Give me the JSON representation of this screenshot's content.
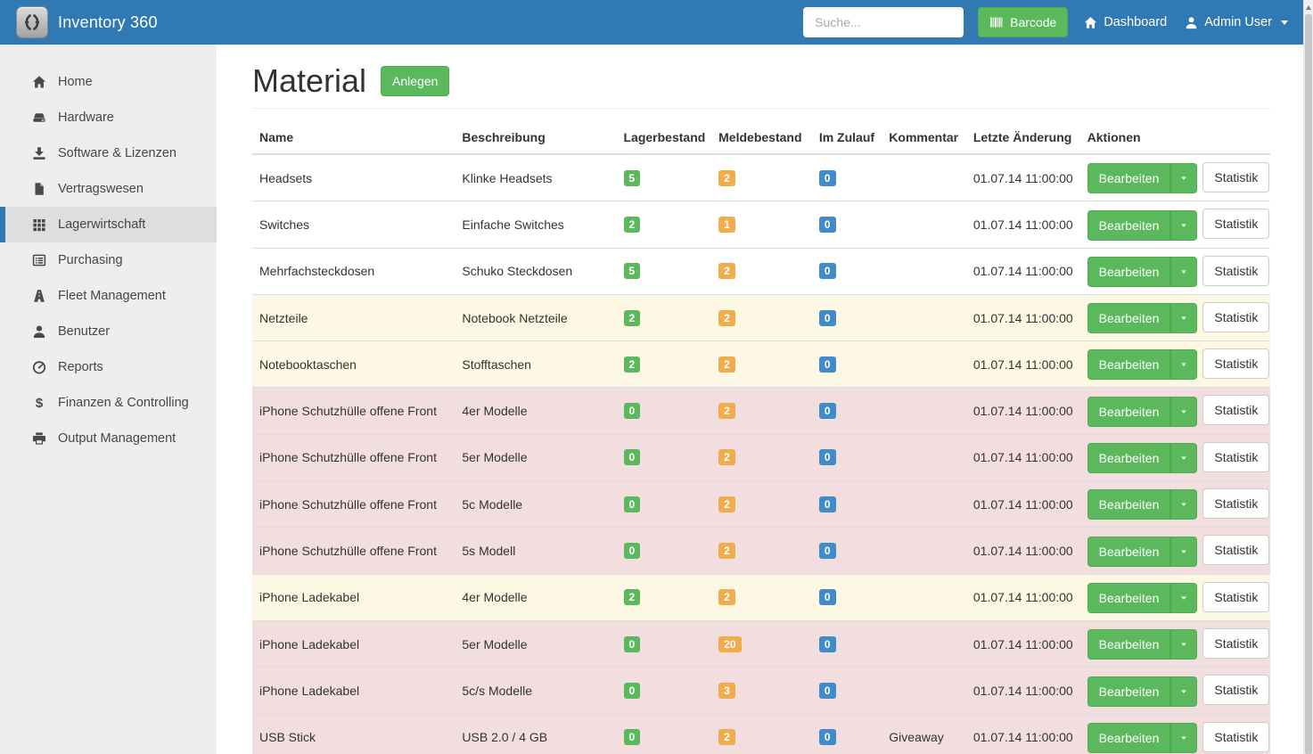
{
  "navbar": {
    "brand": "Inventory 360",
    "search_placeholder": "Suche...",
    "barcode_label": "Barcode",
    "dashboard_label": "Dashboard",
    "user_label": "Admin User"
  },
  "sidebar": {
    "items": [
      {
        "label": "Home",
        "icon": "home-icon",
        "active": false
      },
      {
        "label": "Hardware",
        "icon": "hdd-icon",
        "active": false
      },
      {
        "label": "Software & Lizenzen",
        "icon": "download-icon",
        "active": false
      },
      {
        "label": "Vertragswesen",
        "icon": "file-icon",
        "active": false
      },
      {
        "label": "Lagerwirtschaft",
        "icon": "grid-icon",
        "active": true
      },
      {
        "label": "Purchasing",
        "icon": "list-icon",
        "active": false
      },
      {
        "label": "Fleet Management",
        "icon": "road-icon",
        "active": false
      },
      {
        "label": "Benutzer",
        "icon": "user-icon",
        "active": false
      },
      {
        "label": "Reports",
        "icon": "gauge-icon",
        "active": false
      },
      {
        "label": "Finanzen & Controlling",
        "icon": "dollar-icon",
        "active": false
      },
      {
        "label": "Output Management",
        "icon": "printer-icon",
        "active": false
      }
    ]
  },
  "page": {
    "title": "Material",
    "create_button_label": "Anlegen"
  },
  "table": {
    "columns": [
      "Name",
      "Beschreibung",
      "Lagerbestand",
      "Meldebestand",
      "Im Zulauf",
      "Kommentar",
      "Letzte Änderung",
      "Aktionen"
    ],
    "actions": {
      "edit_label": "Bearbeiten",
      "stats_label": "Statistik"
    },
    "rows": [
      {
        "name": "Headsets",
        "description": "Klinke Headsets",
        "stock": "5",
        "reorder": "2",
        "inbound": "0",
        "comment": "",
        "changed": "01.07.14 11:00:00",
        "state": "default"
      },
      {
        "name": "Switches",
        "description": "Einfache Switches",
        "stock": "2",
        "reorder": "1",
        "inbound": "0",
        "comment": "",
        "changed": "01.07.14 11:00:00",
        "state": "default"
      },
      {
        "name": "Mehrfachsteckdosen",
        "description": "Schuko Steckdosen",
        "stock": "5",
        "reorder": "2",
        "inbound": "0",
        "comment": "",
        "changed": "01.07.14 11:00:00",
        "state": "default"
      },
      {
        "name": "Netzteile",
        "description": "Notebook Netzteile",
        "stock": "2",
        "reorder": "2",
        "inbound": "0",
        "comment": "",
        "changed": "01.07.14 11:00:00",
        "state": "warning"
      },
      {
        "name": "Notebooktaschen",
        "description": "Stofftaschen",
        "stock": "2",
        "reorder": "2",
        "inbound": "0",
        "comment": "",
        "changed": "01.07.14 11:00:00",
        "state": "warning"
      },
      {
        "name": "iPhone Schutzhülle offene Front",
        "description": "4er Modelle",
        "stock": "0",
        "reorder": "2",
        "inbound": "0",
        "comment": "",
        "changed": "01.07.14 11:00:00",
        "state": "danger"
      },
      {
        "name": "iPhone Schutzhülle offene Front",
        "description": "5er Modelle",
        "stock": "0",
        "reorder": "2",
        "inbound": "0",
        "comment": "",
        "changed": "01.07.14 11:00:00",
        "state": "danger"
      },
      {
        "name": "iPhone Schutzhülle offene Front",
        "description": "5c Modelle",
        "stock": "0",
        "reorder": "2",
        "inbound": "0",
        "comment": "",
        "changed": "01.07.14 11:00:00",
        "state": "danger"
      },
      {
        "name": "iPhone Schutzhülle offene Front",
        "description": "5s Modell",
        "stock": "0",
        "reorder": "2",
        "inbound": "0",
        "comment": "",
        "changed": "01.07.14 11:00:00",
        "state": "danger"
      },
      {
        "name": "iPhone Ladekabel",
        "description": "4er Modelle",
        "stock": "2",
        "reorder": "2",
        "inbound": "0",
        "comment": "",
        "changed": "01.07.14 11:00:00",
        "state": "warning"
      },
      {
        "name": "iPhone Ladekabel",
        "description": "5er Modelle",
        "stock": "0",
        "reorder": "20",
        "inbound": "0",
        "comment": "",
        "changed": "01.07.14 11:00:00",
        "state": "danger"
      },
      {
        "name": "iPhone Ladekabel",
        "description": "5c/s Modelle",
        "stock": "0",
        "reorder": "3",
        "inbound": "0",
        "comment": "",
        "changed": "01.07.14 11:00:00",
        "state": "danger"
      },
      {
        "name": "USB Stick",
        "description": "USB 2.0 / 4 GB",
        "stock": "0",
        "reorder": "2",
        "inbound": "0",
        "comment": "Giveaway",
        "changed": "01.07.14 11:00:00",
        "state": "danger"
      }
    ]
  },
  "colors": {
    "navbar_blue": "#3179b2",
    "accent_green": "#5cb85c",
    "badge_stock_green": "#5cb85c",
    "badge_reorder_orange": "#f0ad4e",
    "badge_inbound_blue": "#428bca",
    "row_warning": "#fcf8e3",
    "row_danger": "#f2dede"
  }
}
